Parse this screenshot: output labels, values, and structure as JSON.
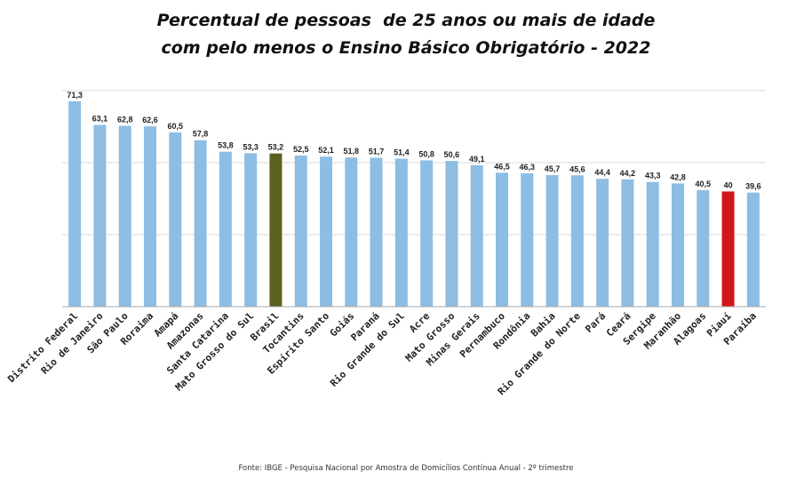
{
  "chart_data": {
    "type": "bar",
    "title_lines": [
      "Percentual de pessoas  de 25 anos ou mais de idade",
      "com pelo menos o Ensino Básico Obrigatório - 2022"
    ],
    "categories": [
      "Distrito Federal",
      "Rio de Janeiro",
      "São Paulo",
      "Roraima",
      "Amapá",
      "Amazonas",
      "Santa Catarina",
      "Mato Grosso do Sul",
      "Brasil",
      "Tocantins",
      "Espírito Santo",
      "Goiás",
      "Paraná",
      "Rio Grande do Sul",
      "Acre",
      "Mato Grosso",
      "Minas Gerais",
      "Pernambuco",
      "Rondônia",
      "Bahia",
      "Rio Grande do Norte",
      "Pará",
      "Ceará",
      "Sergipe",
      "Maranhão",
      "Alagoas",
      "Piauí",
      "Paraíba"
    ],
    "values": [
      71.3,
      63.1,
      62.8,
      62.6,
      60.5,
      57.8,
      53.8,
      53.3,
      53.2,
      52.5,
      52.1,
      51.8,
      51.7,
      51.4,
      50.8,
      50.6,
      49.1,
      46.5,
      46.3,
      45.7,
      45.6,
      44.4,
      44.2,
      43.3,
      42.8,
      40.5,
      40,
      39.6
    ],
    "value_labels": [
      "71,3",
      "63,1",
      "62,8",
      "62,6",
      "60,5",
      "57,8",
      "53,8",
      "53,3",
      "53,2",
      "52,5",
      "52,1",
      "51,8",
      "51,7",
      "51,4",
      "50,8",
      "50,6",
      "49,1",
      "46,5",
      "46,3",
      "45,7",
      "45,6",
      "44,4",
      "44,2",
      "43,3",
      "42,8",
      "40,5",
      "40",
      "39,6"
    ],
    "ylim": [
      0,
      75
    ],
    "gridlines": [
      25,
      50,
      75
    ],
    "grid": true,
    "legend": "none",
    "colors": {
      "default": "#8dbde2",
      "highlights": {
        "Brasil": "#5c601e",
        "Piauí": "#d11717"
      },
      "grid": "#d9d9d9",
      "axis": "#a8a8a8"
    }
  },
  "footer": {
    "source": "Fonte: IBGE -  Pesquisa Nacional por Amostra de Domicílios Contínua Anual - 2º trimestre"
  }
}
